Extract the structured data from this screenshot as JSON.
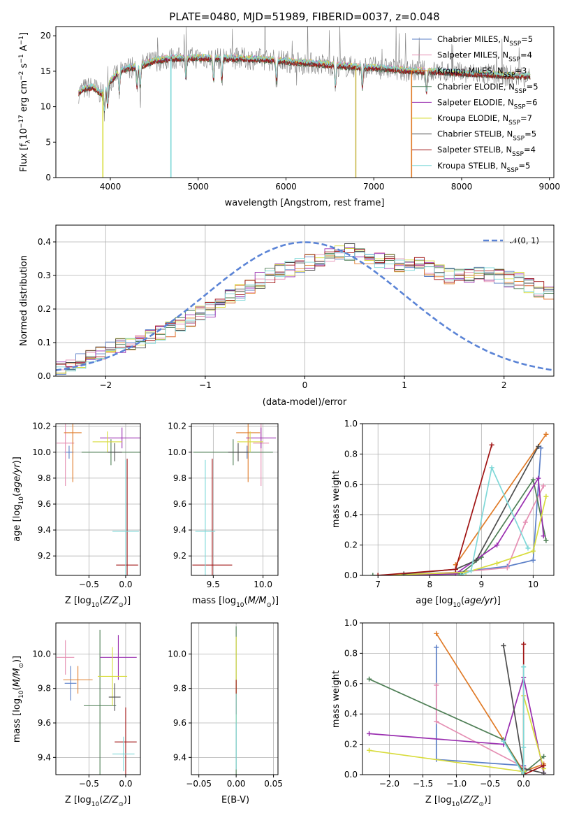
{
  "figure_title": "PLATE=0480, MJD=51989, FIBERID=0037, z=0.048",
  "colors": {
    "Chabrier MILES": "#5b7fc7",
    "Salpeter MILES": "#e58fb3",
    "Kroupa MILES": "#e07b28",
    "Chabrier ELODIE": "#4f7f56",
    "Salpeter ELODIE": "#9a2fb0",
    "Kroupa ELODIE": "#d8dc3c",
    "Chabrier STELIB": "#4d4d4d",
    "Salpeter STELIB": "#a01414",
    "Kroupa STELIB": "#7fd8d8",
    "normal_curve": "#5b84d6",
    "grid": "#b0b0b0"
  },
  "chart_data": [
    {
      "id": "spectrum",
      "type": "line",
      "title": "PLATE=0480, MJD=51989, FIBERID=0037, z=0.048",
      "xlabel": "wavelength [Angstrom, rest frame]",
      "ylabel_main": "Flux [f",
      "ylabel_sub": "λ",
      "ylabel_mid": "10",
      "ylabel_exp1": "−17",
      "ylabel_rest": " erg cm",
      "ylabel_exp2": "−2",
      "ylabel_rest2": " s",
      "ylabel_exp3": "−1",
      "ylabel_rest3": " A",
      "ylabel_exp4": "−1",
      "ylabel_end": "]",
      "xlim": [
        3380,
        9050
      ],
      "ylim": [
        0,
        21.3
      ],
      "xticks": [
        4000,
        5000,
        6000,
        7000,
        8000,
        9000
      ],
      "yticks": [
        0,
        5,
        10,
        15,
        20
      ],
      "grid": false,
      "legend_position": "top-right",
      "legend": [
        {
          "name": "Chabrier MILES",
          "nssp": "5"
        },
        {
          "name": "Salpeter MILES",
          "nssp": "4"
        },
        {
          "name": "Kroupa MILES",
          "nssp": "3"
        },
        {
          "name": "Chabrier ELODIE",
          "nssp": "5"
        },
        {
          "name": "Salpeter ELODIE",
          "nssp": "6"
        },
        {
          "name": "Kroupa ELODIE",
          "nssp": "7"
        },
        {
          "name": "Chabrier STELIB",
          "nssp": "5"
        },
        {
          "name": "Salpeter STELIB",
          "nssp": "4"
        },
        {
          "name": "Kroupa STELIB",
          "nssp": "5"
        }
      ],
      "legend_prefix": "N",
      "legend_sub": "SSP",
      "observed_color": "#808080",
      "continuum_x": [
        3640,
        3700,
        3800,
        3900,
        4000,
        4100,
        4200,
        4300,
        4400,
        4500,
        4700,
        5000,
        5200,
        5500,
        5800,
        6000,
        6200,
        6500,
        6800,
        7000,
        7300,
        7500,
        7800,
        8000,
        8200,
        8500,
        8780
      ],
      "continuum_y": [
        12.0,
        12.5,
        12.8,
        11.8,
        13.5,
        15.0,
        15.5,
        15.6,
        16.0,
        16.5,
        16.8,
        16.9,
        16.8,
        16.8,
        16.6,
        16.4,
        16.2,
        15.9,
        15.6,
        15.5,
        15.2,
        15.0,
        14.9,
        14.7,
        14.6,
        14.4,
        14.3
      ],
      "model_drops": [
        {
          "x": 3915,
          "color": "#d8dc3c"
        },
        {
          "x": 4690,
          "color": "#7fd8d8"
        },
        {
          "x": 6795,
          "color": "#c8b84a"
        },
        {
          "x": 7430,
          "color": "#e07b28"
        }
      ]
    },
    {
      "id": "residuals",
      "type": "histogram",
      "xlabel": "(data-model)/error",
      "ylabel": "Normed distribution",
      "xlim": [
        -2.5,
        2.5
      ],
      "ylim": [
        0,
        0.45
      ],
      "xticks": [
        -2,
        -1,
        0,
        1,
        2
      ],
      "yticks": [
        0.0,
        0.1,
        0.2,
        0.3,
        0.4
      ],
      "grid": true,
      "legend_position": "top-right",
      "legend_label": "𝒩(0, 1)",
      "bin_width": 0.1,
      "base_density": [
        0.03,
        0.035,
        0.045,
        0.055,
        0.065,
        0.08,
        0.09,
        0.1,
        0.105,
        0.115,
        0.125,
        0.14,
        0.155,
        0.17,
        0.185,
        0.2,
        0.215,
        0.235,
        0.25,
        0.27,
        0.285,
        0.3,
        0.31,
        0.32,
        0.33,
        0.34,
        0.35,
        0.36,
        0.365,
        0.37,
        0.355,
        0.35,
        0.345,
        0.34,
        0.335,
        0.33,
        0.33,
        0.32,
        0.31,
        0.3,
        0.295,
        0.3,
        0.305,
        0.3,
        0.295,
        0.29,
        0.285,
        0.27,
        0.26,
        0.25,
        0.24,
        0.22,
        0.2,
        0.19,
        0.175,
        0.16,
        0.15,
        0.14,
        0.13,
        0.12,
        0.11,
        0.1,
        0.09,
        0.085,
        0.08,
        0.075,
        0.07,
        0.065,
        0.06,
        0.055
      ]
    },
    {
      "id": "age-vs-Z",
      "type": "errorbar",
      "xlabel_pre": "Z [log",
      "xlabel_sub": "10",
      "xlabel_post": "(Z/Z",
      "xlabel_sub2": "⊙",
      "xlabel_end": ")]",
      "ylabel_pre": "age  [log",
      "ylabel_sub": "10",
      "ylabel_post": "(age/yr)]",
      "xlim": [
        -0.95,
        0.2
      ],
      "ylim": [
        9.05,
        10.22
      ],
      "xticks": [
        -0.5,
        0.0
      ],
      "xtick_labels": [
        "−0.5",
        "0.0"
      ],
      "yticks": [
        9.2,
        9.4,
        9.6,
        9.8,
        10.0,
        10.2
      ],
      "grid": true,
      "points": [
        {
          "series": "Chabrier MILES",
          "x": -0.77,
          "y": 10.0,
          "xerr": 0.06,
          "yerr": 0.05
        },
        {
          "series": "Salpeter MILES",
          "x": -0.82,
          "y": 10.07,
          "xerr": 0.12,
          "yerr": 0.33
        },
        {
          "series": "Kroupa MILES",
          "x": -0.72,
          "y": 10.15,
          "xerr": 0.12,
          "yerr": 0.38
        },
        {
          "series": "Chabrier ELODIE",
          "x": -0.2,
          "y": 10.0,
          "xerr": 0.4,
          "yerr": 0.1
        },
        {
          "series": "Salpeter ELODIE",
          "x": -0.05,
          "y": 10.11,
          "xerr": 0.3,
          "yerr": 0.08
        },
        {
          "series": "Kroupa ELODIE",
          "x": -0.25,
          "y": 10.08,
          "xerr": 0.2,
          "yerr": 0.08
        },
        {
          "series": "Chabrier STELIB",
          "x": -0.15,
          "y": 10.0,
          "xerr": 0.1,
          "yerr": 0.07
        },
        {
          "series": "Salpeter STELIB",
          "x": 0.02,
          "y": 9.13,
          "xerr": 0.15,
          "yerr": 0.82
        },
        {
          "series": "Kroupa STELIB",
          "x": 0.0,
          "y": 9.39,
          "xerr": 0.18,
          "yerr": 0.55
        }
      ]
    },
    {
      "id": "age-vs-mass",
      "type": "errorbar",
      "xlabel_pre": "mass [log",
      "xlabel_sub": "10",
      "xlabel_post": "(M/M",
      "xlabel_sub2": "⊙",
      "xlabel_end": ")]",
      "xlim": [
        9.28,
        10.15
      ],
      "ylim": [
        9.05,
        10.22
      ],
      "xticks": [
        9.5,
        10.0
      ],
      "xtick_labels": [
        "9.5",
        "10.0"
      ],
      "yticks": [
        9.2,
        9.4,
        9.6,
        9.8,
        10.0,
        10.2
      ],
      "grid": true,
      "points": [
        {
          "series": "Chabrier MILES",
          "x": 9.84,
          "y": 10.0,
          "xerr": 0.03,
          "yerr": 0.05
        },
        {
          "series": "Salpeter MILES",
          "x": 9.98,
          "y": 10.07,
          "xerr": 0.08,
          "yerr": 0.33
        },
        {
          "series": "Kroupa MILES",
          "x": 9.85,
          "y": 10.15,
          "xerr": 0.12,
          "yerr": 0.38
        },
        {
          "series": "Chabrier ELODIE",
          "x": 9.7,
          "y": 10.0,
          "xerr": 0.4,
          "yerr": 0.1
        },
        {
          "series": "Salpeter ELODIE",
          "x": 9.98,
          "y": 10.11,
          "xerr": 0.15,
          "yerr": 0.08
        },
        {
          "series": "Kroupa ELODIE",
          "x": 9.87,
          "y": 10.08,
          "xerr": 0.13,
          "yerr": 0.08
        },
        {
          "series": "Chabrier STELIB",
          "x": 9.75,
          "y": 10.0,
          "xerr": 0.1,
          "yerr": 0.07
        },
        {
          "series": "Salpeter STELIB",
          "x": 9.49,
          "y": 9.13,
          "xerr": 0.2,
          "yerr": 0.82
        },
        {
          "series": "Kroupa STELIB",
          "x": 9.42,
          "y": 9.39,
          "xerr": 0.1,
          "yerr": 0.55
        }
      ]
    },
    {
      "id": "weight-vs-age",
      "type": "line",
      "xlabel_pre": "age  [log",
      "xlabel_sub": "10",
      "xlabel_post": "(age/yr)]",
      "ylabel": "mass weight",
      "xlim": [
        6.7,
        10.4
      ],
      "ylim": [
        0,
        1.0
      ],
      "xticks": [
        7,
        8,
        9,
        10
      ],
      "yticks": [
        0.0,
        0.2,
        0.4,
        0.6,
        0.8,
        1.0
      ],
      "grid": true,
      "series": [
        {
          "name": "Chabrier MILES",
          "x": [
            7.0,
            8.5,
            9.5,
            10.0,
            10.15
          ],
          "y": [
            0.0,
            0.02,
            0.06,
            0.1,
            0.84
          ]
        },
        {
          "name": "Salpeter MILES",
          "x": [
            7.0,
            8.5,
            9.5,
            9.85,
            10.2
          ],
          "y": [
            0.0,
            0.02,
            0.05,
            0.35,
            0.59
          ]
        },
        {
          "name": "Kroupa MILES",
          "x": [
            8.5,
            10.25
          ],
          "y": [
            0.07,
            0.93
          ]
        },
        {
          "name": "Chabrier ELODIE",
          "x": [
            6.9,
            8.6,
            9.0,
            10.0,
            10.25
          ],
          "y": [
            0.0,
            0.01,
            0.12,
            0.63,
            0.23
          ]
        },
        {
          "name": "Salpeter ELODIE",
          "x": [
            7.0,
            8.5,
            9.3,
            10.1,
            10.2
          ],
          "y": [
            0.0,
            0.01,
            0.2,
            0.64,
            0.26
          ]
        },
        {
          "name": "Kroupa ELODIE",
          "x": [
            7.0,
            8.7,
            9.3,
            10.0,
            10.25
          ],
          "y": [
            0.0,
            0.02,
            0.08,
            0.16,
            0.52
          ]
        },
        {
          "name": "Chabrier STELIB",
          "x": [
            7.5,
            8.5,
            8.9,
            10.1
          ],
          "y": [
            0.01,
            0.04,
            0.1,
            0.85
          ]
        },
        {
          "name": "Salpeter STELIB",
          "x": [
            7.0,
            8.5,
            9.2
          ],
          "y": [
            0.0,
            0.04,
            0.86
          ]
        },
        {
          "name": "Kroupa STELIB",
          "x": [
            8.6,
            8.8,
            9.2,
            9.9
          ],
          "y": [
            0.0,
            0.03,
            0.71,
            0.18
          ]
        }
      ]
    },
    {
      "id": "mass-vs-Z",
      "type": "errorbar",
      "xlabel_pre": "Z [log",
      "xlabel_sub": "10",
      "xlabel_post": "(Z/Z",
      "xlabel_sub2": "⊙",
      "xlabel_end": ")]",
      "ylabel_pre": "mass [log",
      "ylabel_sub": "10",
      "ylabel_post": "(M/M",
      "ylabel_sub2": "⊙",
      "ylabel_end": ")]",
      "xlim": [
        -0.95,
        0.2
      ],
      "ylim": [
        9.3,
        10.18
      ],
      "xticks": [
        -0.5,
        0.0
      ],
      "xtick_labels": [
        "−0.5",
        "0.0"
      ],
      "yticks": [
        9.4,
        9.6,
        9.8,
        10.0
      ],
      "grid": true,
      "points": [
        {
          "series": "Chabrier MILES",
          "x": -0.75,
          "y": 9.83,
          "xerr": 0.08,
          "yerr": 0.1
        },
        {
          "series": "Salpeter MILES",
          "x": -0.82,
          "y": 9.98,
          "xerr": 0.12,
          "yerr": 0.1
        },
        {
          "series": "Kroupa MILES",
          "x": -0.65,
          "y": 9.85,
          "xerr": 0.2,
          "yerr": 0.08
        },
        {
          "series": "Chabrier ELODIE",
          "x": -0.35,
          "y": 9.7,
          "xerr": 0.22,
          "yerr": 0.44
        },
        {
          "series": "Salpeter ELODIE",
          "x": -0.1,
          "y": 9.98,
          "xerr": 0.25,
          "yerr": 0.13
        },
        {
          "series": "Kroupa ELODIE",
          "x": -0.18,
          "y": 9.87,
          "xerr": 0.2,
          "yerr": 0.17
        },
        {
          "series": "Chabrier STELIB",
          "x": -0.15,
          "y": 9.75,
          "xerr": 0.08,
          "yerr": 0.08
        },
        {
          "series": "Salpeter STELIB",
          "x": 0.0,
          "y": 9.49,
          "xerr": 0.15,
          "yerr": 0.2
        },
        {
          "series": "Kroupa STELIB",
          "x": -0.03,
          "y": 9.42,
          "xerr": 0.15,
          "yerr": 0.1
        }
      ]
    },
    {
      "id": "mass-vs-ebv",
      "type": "errorbar",
      "xlabel": "E(B-V)",
      "xlim": [
        -0.06,
        0.056
      ],
      "ylim": [
        9.3,
        10.18
      ],
      "xticks": [
        -0.05,
        0.0,
        0.05
      ],
      "xtick_labels": [
        "−0.05",
        "0.00",
        "0.05"
      ],
      "yticks": [
        9.4,
        9.6,
        9.8,
        10.0
      ],
      "grid": true,
      "points": [
        {
          "series": "Chabrier ELODIE",
          "x": 0.0,
          "y": 9.72,
          "xerr": 0.0,
          "yerr": 0.44
        },
        {
          "series": "Kroupa ELODIE",
          "x": 0.0,
          "y": 9.85,
          "xerr": 0.0,
          "yerr": 0.25
        },
        {
          "series": "Salpeter STELIB",
          "x": 0.0,
          "y": 9.75,
          "xerr": 0.0,
          "yerr": 0.1
        },
        {
          "series": "Kroupa STELIB",
          "x": 0.0,
          "y": 9.55,
          "xerr": 0.0,
          "yerr": 0.22
        }
      ]
    },
    {
      "id": "weight-vs-Z",
      "type": "line",
      "xlabel_pre": "Z [log",
      "xlabel_sub": "10",
      "xlabel_post": "(Z/Z",
      "xlabel_sub2": "⊙",
      "xlabel_end": ")]",
      "ylabel": "mass weight",
      "xlim": [
        -2.4,
        0.45
      ],
      "ylim": [
        0,
        1.0
      ],
      "xticks": [
        -2.0,
        -1.5,
        -1.0,
        -0.5,
        0.0
      ],
      "xtick_labels": [
        "−2.0",
        "−1.5",
        "−1.0",
        "−0.5",
        "0.0"
      ],
      "yticks": [
        0.0,
        0.2,
        0.4,
        0.6,
        0.8,
        1.0
      ],
      "grid": true,
      "series": [
        {
          "name": "Chabrier MILES",
          "x": [
            -1.3,
            -1.3,
            0.0
          ],
          "y": [
            0.84,
            0.1,
            0.06
          ]
        },
        {
          "name": "Salpeter MILES",
          "x": [
            -1.3,
            -1.3,
            0.0
          ],
          "y": [
            0.59,
            0.35,
            0.05
          ]
        },
        {
          "name": "Kroupa MILES",
          "x": [
            -1.3,
            0.0,
            0.3
          ],
          "y": [
            0.93,
            0.02,
            0.07
          ]
        },
        {
          "name": "Chabrier ELODIE",
          "x": [
            -2.3,
            -0.3,
            0.0,
            0.3
          ],
          "y": [
            0.63,
            0.23,
            0.01,
            0.12
          ]
        },
        {
          "name": "Salpeter ELODIE",
          "x": [
            -2.3,
            -0.3,
            0.0,
            0.3
          ],
          "y": [
            0.27,
            0.2,
            0.64,
            0.01
          ]
        },
        {
          "name": "Kroupa ELODIE",
          "x": [
            -2.3,
            0.0,
            0.0,
            0.3
          ],
          "y": [
            0.16,
            0.02,
            0.52,
            0.04
          ]
        },
        {
          "name": "Chabrier STELIB",
          "x": [
            -0.3,
            0.0,
            0.3
          ],
          "y": [
            0.85,
            0.04,
            0.01
          ]
        },
        {
          "name": "Salpeter STELIB",
          "x": [
            0.0,
            0.0,
            0.3
          ],
          "y": [
            0.86,
            0.0,
            0.06
          ]
        },
        {
          "name": "Kroupa STELIB",
          "x": [
            -0.3,
            0.0,
            0.0,
            0.0
          ],
          "y": [
            0.22,
            0.0,
            0.71,
            0.18
          ]
        }
      ]
    }
  ]
}
